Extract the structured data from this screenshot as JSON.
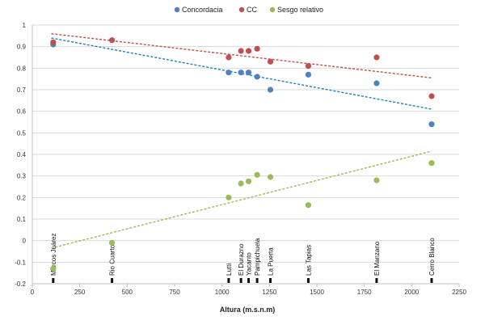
{
  "chart_data": {
    "type": "scatter",
    "title": "",
    "xlabel": "Altura (m.s.n.m)",
    "ylabel": "",
    "xlim": [
      0,
      2250
    ],
    "ylim": [
      -0.2,
      1.0
    ],
    "x_ticks": [
      0,
      250,
      500,
      750,
      1000,
      1250,
      1500,
      1750,
      2000,
      2250
    ],
    "y_ticks": [
      -0.2,
      -0.1,
      0,
      0.1,
      0.2,
      0.3,
      0.4,
      0.5,
      0.6,
      0.7,
      0.8,
      0.9,
      1
    ],
    "x_tick_labels": [
      "0",
      "250",
      "500",
      "750",
      "1000",
      "1250",
      "1500",
      "1750",
      "2000",
      "2250"
    ],
    "y_tick_labels": [
      "-0.2",
      "-0.1",
      "0",
      "0.1",
      "0.2",
      "0.3",
      "0.4",
      "0.5",
      "0.6",
      "0.7",
      "0.8",
      "0.9",
      "1"
    ],
    "grid": "horizontal",
    "legend_position": "top",
    "series": [
      {
        "name": "Concordacia",
        "color": "#4f81bd",
        "trend_color": "#1f7fc4",
        "points": [
          [
            110,
            0.91
          ],
          [
            1035,
            0.78
          ],
          [
            1100,
            0.78
          ],
          [
            1140,
            0.78
          ],
          [
            1185,
            0.76
          ],
          [
            1255,
            0.7
          ],
          [
            1455,
            0.77
          ],
          [
            1815,
            0.73
          ],
          [
            2105,
            0.54
          ]
        ],
        "trendline": [
          [
            100,
            0.94
          ],
          [
            2105,
            0.61
          ]
        ]
      },
      {
        "name": "CC",
        "color": "#c0504d",
        "trend_color": "#c0504d",
        "points": [
          [
            110,
            0.92
          ],
          [
            420,
            0.93
          ],
          [
            1035,
            0.85
          ],
          [
            1100,
            0.88
          ],
          [
            1140,
            0.88
          ],
          [
            1185,
            0.89
          ],
          [
            1255,
            0.83
          ],
          [
            1455,
            0.81
          ],
          [
            1815,
            0.85
          ],
          [
            2105,
            0.67
          ]
        ],
        "trendline": [
          [
            100,
            0.96
          ],
          [
            2105,
            0.755
          ]
        ]
      },
      {
        "name": "Sesgo relativo",
        "color": "#9bbb59",
        "trend_color": "#9bbb59",
        "points": [
          [
            110,
            -0.13
          ],
          [
            420,
            -0.01
          ],
          [
            1035,
            0.2
          ],
          [
            1100,
            0.265
          ],
          [
            1140,
            0.275
          ],
          [
            1185,
            0.305
          ],
          [
            1255,
            0.295
          ],
          [
            1455,
            0.165
          ],
          [
            1815,
            0.28
          ],
          [
            2105,
            0.36
          ]
        ],
        "trendline": [
          [
            100,
            -0.035
          ],
          [
            2105,
            0.415
          ]
        ]
      }
    ],
    "annotations": [
      {
        "label": "Marcos Juárez",
        "x": 110
      },
      {
        "label": "Rio Cuarto",
        "x": 420
      },
      {
        "label": "Lutti",
        "x": 1035
      },
      {
        "label": "El Durazno",
        "x": 1100
      },
      {
        "label": "Yacanto",
        "x": 1140
      },
      {
        "label": "Pampichuela",
        "x": 1185
      },
      {
        "label": "La Puerta",
        "x": 1255
      },
      {
        "label": "Las Tapias",
        "x": 1455
      },
      {
        "label": "El Manzano",
        "x": 1815
      },
      {
        "label": "Cerro Blanco",
        "x": 2105
      }
    ],
    "annotation_marker_y": -0.2
  }
}
